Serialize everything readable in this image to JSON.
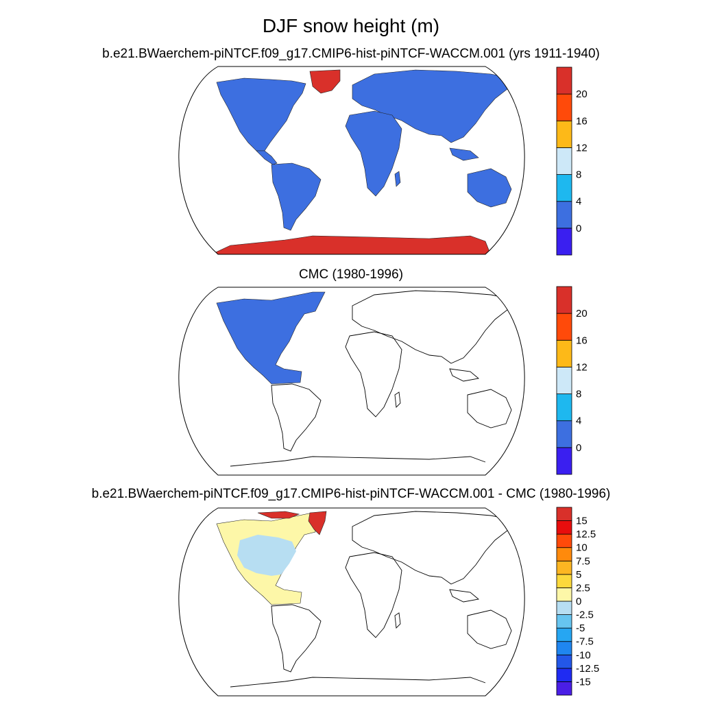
{
  "title": "DJF snow height (m)",
  "panels": [
    {
      "id": "model",
      "title": "b.e21.BWaerchem-piNTCF.f09_g17.CMIP6-hist-piNTCF-WACCM.001 (yrs 1911-1940)",
      "colorbar": {
        "colors": [
          "#3a1ff0",
          "#3d6fe0",
          "#1eb8ef",
          "#cde8f8",
          "#fdb918",
          "#ff4a0a",
          "#d9302a"
        ],
        "labels": [
          "0",
          "4",
          "8",
          "12",
          "16",
          "20"
        ]
      },
      "fill": {
        "land": "#3d6fe0",
        "ice": "#d9302a"
      }
    },
    {
      "id": "obs",
      "title": "CMC (1980-1996)",
      "colorbar": {
        "colors": [
          "#3a1ff0",
          "#3d6fe0",
          "#1eb8ef",
          "#cde8f8",
          "#fdb918",
          "#ff4a0a",
          "#d9302a"
        ],
        "labels": [
          "0",
          "4",
          "8",
          "12",
          "16",
          "20"
        ]
      },
      "fill": {
        "north_america": "#3d6fe0"
      }
    },
    {
      "id": "diff",
      "title": "b.e21.BWaerchem-piNTCF.f09_g17.CMIP6-hist-piNTCF-WACCM.001 - CMC (1980-1996)",
      "colorbar": {
        "colors": [
          "#4a1ee6",
          "#1f2bf2",
          "#2357e8",
          "#1f86f0",
          "#26a6f2",
          "#67c5f0",
          "#b7def2",
          "#fdf7a8",
          "#fcd93c",
          "#fdb622",
          "#ff8a0c",
          "#ff4a0a",
          "#e80d0d",
          "#d9302a"
        ],
        "labels": [
          "-15",
          "-12.5",
          "-10",
          "-7.5",
          "-5",
          "-2.5",
          "0",
          "2.5",
          "5",
          "7.5",
          "10",
          "12.5",
          "15"
        ]
      },
      "fill": {
        "north_america": "#b7def2",
        "northern_edge": "#fdf7a8",
        "greenland": "#d9302a"
      }
    }
  ]
}
